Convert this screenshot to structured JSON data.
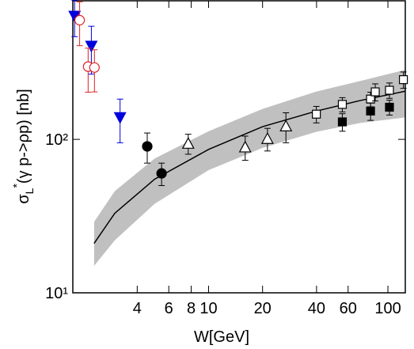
{
  "chart_data": {
    "type": "scatter",
    "xlabel": "W[GeV]",
    "ylabel": {
      "symbol": "σ",
      "sub": "L",
      "sup": "*",
      "text": "(γ p->ρp)  [nb]"
    },
    "xlog": true,
    "ylog": true,
    "xlim": [
      1.75,
      125
    ],
    "ylim": [
      10,
      800
    ],
    "xticks": [
      4,
      6,
      8,
      10,
      20,
      40,
      60,
      100
    ],
    "yticks": [
      {
        "value": 10,
        "label": "10¹"
      },
      {
        "value": 100,
        "label": "10²"
      }
    ],
    "band": {
      "color": "#c0c0c0",
      "x": [
        2.3,
        3,
        5,
        10,
        20,
        40,
        70,
        125
      ],
      "lower": [
        15,
        22,
        38,
        63,
        88,
        112,
        128,
        139
      ],
      "upper": [
        29,
        46,
        75,
        113,
        158,
        205,
        240,
        284
      ]
    },
    "curve": {
      "color": "#000000",
      "x": [
        2.3,
        3,
        5,
        10,
        20,
        40,
        70,
        125
      ],
      "values": [
        21,
        33,
        55,
        86,
        121,
        153,
        179,
        206
      ]
    },
    "series": [
      {
        "marker": "triangle-down",
        "filled": true,
        "color": "#0000dd",
        "x": [
          1.79,
          2.22,
          3.21
        ],
        "values": [
          637,
          406,
          139
        ],
        "errors": [
          170,
          140,
          44
        ]
      },
      {
        "marker": "circle",
        "filled": false,
        "color": "#dd2222",
        "x": [
          1.91,
          2.13,
          2.31
        ],
        "values": [
          598,
          298,
          294
        ],
        "errors": [
          190,
          95,
          90
        ]
      },
      {
        "marker": "circle",
        "filled": true,
        "color": "#000000",
        "x": [
          4.55,
          5.47
        ],
        "values": [
          90,
          60
        ],
        "errors": [
          20,
          10
        ]
      },
      {
        "marker": "triangle-up",
        "filled": false,
        "color": "#000000",
        "x": [
          7.7,
          16,
          21.3,
          27
        ],
        "values": [
          94,
          89,
          101,
          122
        ],
        "errors": [
          14,
          16,
          17,
          27
        ]
      },
      {
        "marker": "square",
        "filled": false,
        "color": "#000000",
        "x": [
          39.9,
          55.7,
          80,
          85,
          102,
          122
        ],
        "values": [
          146,
          169,
          183,
          204,
          209,
          245
        ],
        "errors": [
          18,
          18,
          20,
          26,
          24,
          30
        ]
      },
      {
        "marker": "square",
        "filled": true,
        "color": "#000000",
        "x": [
          55.7,
          80,
          102
        ],
        "values": [
          130,
          153,
          162
        ],
        "errors": [
          17,
          20,
          18
        ]
      }
    ]
  }
}
